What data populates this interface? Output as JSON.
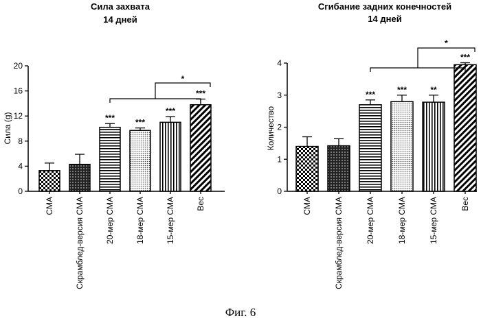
{
  "figure_caption": "Фиг. 6",
  "chart_data": [
    {
      "type": "bar",
      "title": "Сила захвата",
      "subtitle": "14 дней",
      "xlabel": "",
      "ylabel": "Сила (g)",
      "ylim": [
        0,
        20
      ],
      "yticks": [
        "0",
        "4",
        "8",
        "12",
        "16",
        "20"
      ],
      "categories": [
        "CMA",
        "Скрамблед-версия CMA",
        "20-мер CMA",
        "18-мер CMA",
        "15-мер CMA",
        "Вес"
      ],
      "values": [
        3.3,
        4.3,
        10.2,
        9.7,
        11.0,
        13.8
      ],
      "errors": [
        1.2,
        1.6,
        0.6,
        0.4,
        0.9,
        0.9
      ],
      "patterns": [
        "checker",
        "dark-dots",
        "hlines",
        "dots",
        "vlines",
        "diag"
      ],
      "bar_labels": [
        "",
        "",
        "***",
        "***",
        "***",
        "***"
      ],
      "comparison": {
        "from_index": 2,
        "to_index": 5,
        "label": "*"
      }
    },
    {
      "type": "bar",
      "title": "Сгибание задних конечностей",
      "subtitle": "14 дней",
      "xlabel": "",
      "ylabel": "Количество",
      "ylim": [
        0,
        4
      ],
      "yticks": [
        "0",
        "1",
        "2",
        "3",
        "4"
      ],
      "categories": [
        "CMA",
        "Скрамблед-версия CMA",
        "20-мер CMA",
        "18-мер CMA",
        "15-мер CMA",
        "Вес"
      ],
      "values": [
        1.4,
        1.42,
        2.7,
        2.8,
        2.78,
        3.95
      ],
      "errors": [
        0.3,
        0.22,
        0.15,
        0.2,
        0.22,
        0.06
      ],
      "patterns": [
        "checker",
        "dark-dots",
        "hlines",
        "dots",
        "vlines",
        "diag"
      ],
      "bar_labels": [
        "",
        "",
        "***",
        "***",
        "**",
        "***"
      ],
      "comparison": {
        "from_index": 2,
        "to_index": 5,
        "label": "*"
      }
    }
  ]
}
